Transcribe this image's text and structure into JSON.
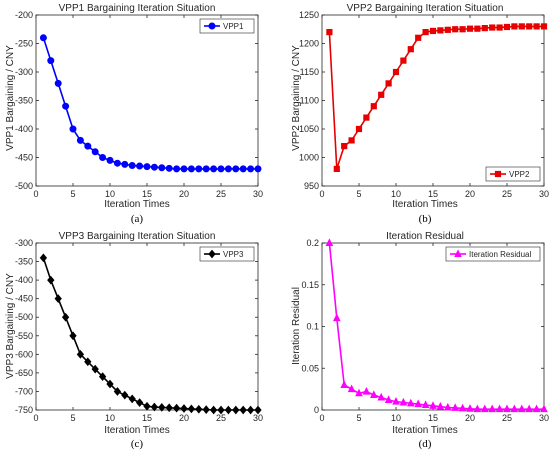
{
  "panels": [
    {
      "caption": "(a)",
      "chart_data": {
        "type": "line",
        "title": "VPP1 Bargaining Iteration Situation",
        "xlabel": "Iteration Times",
        "ylabel": "VPP1 Bargaining / CNY",
        "xlim": [
          0,
          30
        ],
        "ylim": [
          -500,
          -200
        ],
        "xticks": [
          0,
          5,
          10,
          15,
          20,
          25,
          30
        ],
        "yticks": [
          -500,
          -450,
          -400,
          -350,
          -300,
          -250,
          -200
        ],
        "legend_position": "top-right",
        "series": [
          {
            "name": "VPP1",
            "color": "#0000ff",
            "marker": "circle",
            "x": [
              1,
              2,
              3,
              4,
              5,
              6,
              7,
              8,
              9,
              10,
              11,
              12,
              13,
              14,
              15,
              16,
              17,
              18,
              19,
              20,
              21,
              22,
              23,
              24,
              25,
              26,
              27,
              28,
              29,
              30
            ],
            "y": [
              -240,
              -280,
              -320,
              -360,
              -400,
              -420,
              -430,
              -440,
              -450,
              -455,
              -460,
              -462,
              -464,
              -465,
              -466,
              -467,
              -468,
              -469,
              -470,
              -470,
              -470,
              -470,
              -470,
              -470,
              -470,
              -470,
              -470,
              -470,
              -470,
              -470
            ]
          }
        ]
      }
    },
    {
      "caption": "(b)",
      "chart_data": {
        "type": "line",
        "title": "VPP2 Bargaining Iteration Situation",
        "xlabel": "Iteration Times",
        "ylabel": "VPP2 Bargaining / CNY",
        "xlim": [
          0,
          30
        ],
        "ylim": [
          950,
          1250
        ],
        "xticks": [
          0,
          5,
          10,
          15,
          20,
          25,
          30
        ],
        "yticks": [
          950,
          1000,
          1050,
          1100,
          1150,
          1200,
          1250
        ],
        "legend_position": "bottom-right",
        "series": [
          {
            "name": "VPP2",
            "color": "#e60000",
            "marker": "square",
            "x": [
              1,
              2,
              3,
              4,
              5,
              6,
              7,
              8,
              9,
              10,
              11,
              12,
              13,
              14,
              15,
              16,
              17,
              18,
              19,
              20,
              21,
              22,
              23,
              24,
              25,
              26,
              27,
              28,
              29,
              30
            ],
            "y": [
              1220,
              980,
              1020,
              1030,
              1050,
              1070,
              1090,
              1110,
              1130,
              1150,
              1170,
              1190,
              1210,
              1220,
              1222,
              1223,
              1224,
              1225,
              1225,
              1226,
              1226,
              1227,
              1228,
              1228,
              1229,
              1230,
              1230,
              1230,
              1230,
              1230
            ]
          }
        ]
      }
    },
    {
      "caption": "(c)",
      "chart_data": {
        "type": "line",
        "title": "VPP3 Bargaining Iteration Situation",
        "xlabel": "Iteration Times",
        "ylabel": "VPP3 Bargaining / CNY",
        "xlim": [
          0,
          30
        ],
        "ylim": [
          -750,
          -300
        ],
        "xticks": [
          0,
          5,
          10,
          15,
          20,
          25,
          30
        ],
        "yticks": [
          -750,
          -700,
          -650,
          -600,
          -550,
          -500,
          -450,
          -400,
          -350,
          -300
        ],
        "legend_position": "top-right",
        "series": [
          {
            "name": "VPP3",
            "color": "#000000",
            "marker": "diamond",
            "x": [
              1,
              2,
              3,
              4,
              5,
              6,
              7,
              8,
              9,
              10,
              11,
              12,
              13,
              14,
              15,
              16,
              17,
              18,
              19,
              20,
              21,
              22,
              23,
              24,
              25,
              26,
              27,
              28,
              29,
              30
            ],
            "y": [
              -340,
              -400,
              -450,
              -500,
              -550,
              -600,
              -620,
              -640,
              -660,
              -680,
              -700,
              -710,
              -720,
              -730,
              -740,
              -742,
              -743,
              -744,
              -745,
              -746,
              -747,
              -748,
              -749,
              -750,
              -750,
              -750,
              -750,
              -750,
              -750,
              -750
            ]
          }
        ]
      }
    },
    {
      "caption": "(d)",
      "chart_data": {
        "type": "line",
        "title": "Iteration Residual",
        "xlabel": "Iteration Times",
        "ylabel": "Iteration Residual",
        "xlim": [
          0,
          30
        ],
        "ylim": [
          0,
          0.2
        ],
        "xticks": [
          0,
          5,
          10,
          15,
          20,
          25,
          30
        ],
        "yticks": [
          0,
          0.05,
          0.1,
          0.15,
          0.2
        ],
        "legend_position": "top-right",
        "series": [
          {
            "name": "Iteration Residual",
            "color": "#ff00ff",
            "marker": "triangle",
            "x": [
              1,
              2,
              3,
              4,
              5,
              6,
              7,
              8,
              9,
              10,
              11,
              12,
              13,
              14,
              15,
              16,
              17,
              18,
              19,
              20,
              21,
              22,
              23,
              24,
              25,
              26,
              27,
              28,
              29,
              30
            ],
            "y": [
              0.2,
              0.11,
              0.03,
              0.025,
              0.02,
              0.022,
              0.018,
              0.015,
              0.012,
              0.01,
              0.009,
              0.008,
              0.007,
              0.006,
              0.005,
              0.004,
              0.003,
              0.0025,
              0.002,
              0.0015,
              0.001,
              0.001,
              0.001,
              0.001,
              0.001,
              0.001,
              0.001,
              0.001,
              0.001,
              0.001
            ]
          }
        ]
      }
    }
  ]
}
